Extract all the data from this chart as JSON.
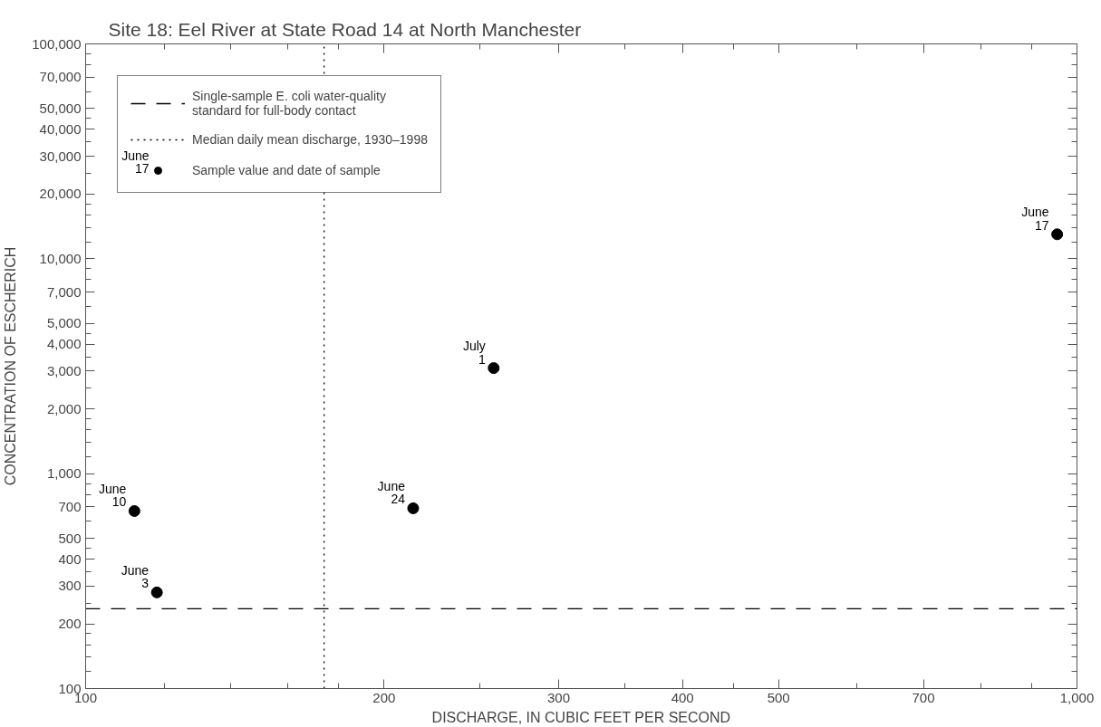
{
  "chart_data": {
    "type": "scatter",
    "title": "Site 18: Eel River at State Road 14 at North Manchester",
    "xlabel": "DISCHARGE, IN CUBIC FEET PER SECOND",
    "ylabel": "CONCENTRATION OF ESCHERICH",
    "log": "xy",
    "grid": false,
    "legend": "top left",
    "marker": "circle",
    "xlim": [
      100,
      1000
    ],
    "ylim": [
      100,
      100000
    ],
    "xticks": [
      100,
      200,
      300,
      400,
      500,
      700,
      {
        "value": 1000,
        "label": "1,000"
      },
      {
        "value": 120,
        "label": null
      },
      {
        "value": 140,
        "label": null
      },
      {
        "value": 160,
        "label": null
      },
      {
        "value": 180,
        "label": null
      },
      {
        "value": 250,
        "label": null
      },
      {
        "value": 350,
        "label": null
      },
      {
        "value": 450,
        "label": null
      },
      {
        "value": 600,
        "label": null
      },
      {
        "value": 800,
        "label": null
      },
      {
        "value": 900,
        "label": null
      }
    ],
    "yticks": [
      100,
      200,
      300,
      400,
      500,
      700,
      {
        "value": 1000,
        "label": "1,000"
      },
      {
        "value": 2000,
        "label": "2,000"
      },
      {
        "value": 3000,
        "label": "3,000"
      },
      {
        "value": 4000,
        "label": "4,000"
      },
      {
        "value": 5000,
        "label": "5,000"
      },
      {
        "value": 7000,
        "label": "7,000"
      },
      {
        "value": 10000,
        "label": "10,000"
      },
      {
        "value": 20000,
        "label": "20,000"
      },
      {
        "value": 30000,
        "label": "30,000"
      },
      {
        "value": 40000,
        "label": "40,000"
      },
      {
        "value": 50000,
        "label": "50,000"
      },
      {
        "value": 70000,
        "label": "70,000"
      },
      {
        "value": 100000,
        "label": "100,000"
      },
      {
        "value": 120,
        "label": null
      },
      {
        "value": 140,
        "label": null
      },
      {
        "value": 160,
        "label": null
      },
      {
        "value": 180,
        "label": null
      },
      {
        "value": 250,
        "label": null
      },
      {
        "value": 350,
        "label": null
      },
      {
        "value": 450,
        "label": null
      },
      {
        "value": 600,
        "label": null
      },
      {
        "value": 800,
        "label": null
      },
      {
        "value": 900,
        "label": null
      },
      {
        "value": 1200,
        "label": null
      },
      {
        "value": 1400,
        "label": null
      },
      {
        "value": 1600,
        "label": null
      },
      {
        "value": 1800,
        "label": null
      },
      {
        "value": 2500,
        "label": null
      },
      {
        "value": 3500,
        "label": null
      },
      {
        "value": 4500,
        "label": null
      },
      {
        "value": 6000,
        "label": null
      },
      {
        "value": 8000,
        "label": null
      },
      {
        "value": 9000,
        "label": null
      },
      {
        "value": 12000,
        "label": null
      },
      {
        "value": 14000,
        "label": null
      },
      {
        "value": 16000,
        "label": null
      },
      {
        "value": 18000,
        "label": null
      },
      {
        "value": 25000,
        "label": null
      },
      {
        "value": 35000,
        "label": null
      },
      {
        "value": 45000,
        "label": null
      },
      {
        "value": 60000,
        "label": null
      },
      {
        "value": 80000,
        "label": null
      },
      {
        "value": 90000,
        "label": null
      }
    ],
    "series": [
      {
        "name": "Sample value and date of sample",
        "color": "#000000",
        "x": [
          118,
          112,
          955,
          214,
          258
        ],
        "values": [
          280,
          670,
          13000,
          690,
          3100
        ],
        "value_labels": [
          "June\n3",
          "June\n10",
          "June\n17",
          "June\n24",
          "July\n1"
        ]
      }
    ],
    "ref_lines": [
      {
        "axis": "y",
        "value": 235,
        "label": "Single-sample E. coli water-quality\nstandard for full-body contact",
        "color": "#000000",
        "line_style": "dashed"
      },
      {
        "axis": "x",
        "value": 174,
        "label": "Median daily mean discharge, 1930–1998",
        "color": "#000000",
        "line_style": "dotted"
      }
    ],
    "annotations": [
      "June\n17"
    ]
  }
}
